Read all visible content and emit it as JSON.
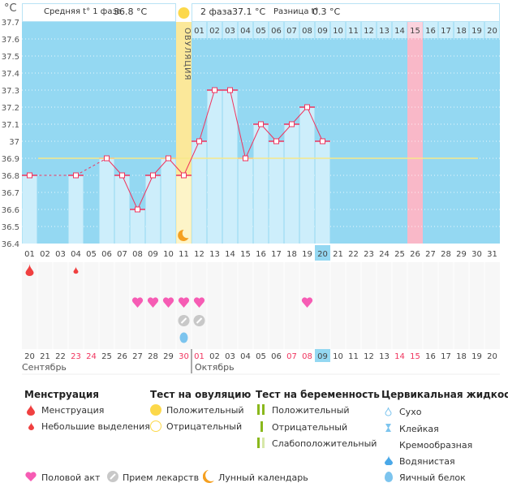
{
  "header": {
    "unit": "°C",
    "phase1_label": "Средняя t° 1 фаза",
    "phase1_value": "36.8 °C",
    "phase2_label": "2 фаза",
    "phase2_value": "37.1 °C",
    "diff_label": "Разница t°",
    "diff_value": "0.3 °C",
    "ovulation_label": "ОВУЛЯЦИЯ"
  },
  "colors": {
    "bg": "#94d8f2",
    "bar": "#cdeefb",
    "line": "#f0345e",
    "coverline": "#f7e78a",
    "ovulation": "#fbe89a",
    "highlight": "#f9b8c8",
    "weekend": "#f0345e"
  },
  "chart_data": {
    "type": "line",
    "ylim": [
      36.4,
      37.7
    ],
    "yticks": [
      "37.7",
      "37.6",
      "37.5",
      "37.4",
      "37.3",
      "37.2",
      "37.1",
      "37",
      "36.9",
      "36.8",
      "36.7",
      "36.6",
      "36.5",
      "36.4"
    ],
    "x": [
      "01",
      "02",
      "03",
      "04",
      "05",
      "06",
      "07",
      "08",
      "09",
      "10",
      "11",
      "12",
      "13",
      "14",
      "15",
      "16",
      "17",
      "18",
      "19",
      "20",
      "21",
      "22",
      "23",
      "24",
      "25",
      "26",
      "27",
      "28",
      "29",
      "30",
      "31"
    ],
    "temperatures": [
      36.8,
      null,
      null,
      36.8,
      null,
      36.9,
      36.8,
      36.6,
      36.8,
      36.9,
      36.8,
      37.0,
      37.3,
      37.3,
      36.9,
      37.1,
      37.0,
      37.1,
      37.2,
      37.0,
      null,
      null,
      null,
      null,
      null,
      null,
      null,
      null,
      null,
      null,
      null
    ],
    "coverline": 36.9,
    "ovulation_day": 11,
    "current_day": 20,
    "highlighted_day": 26,
    "phase2_day_labels": [
      "01",
      "02",
      "03",
      "04",
      "05",
      "06",
      "07",
      "08",
      "09",
      "10",
      "11",
      "12",
      "13",
      "14",
      "15",
      "16",
      "17",
      "18",
      "19",
      "20"
    ],
    "grid": true
  },
  "calendar": {
    "dates": [
      "20",
      "21",
      "22",
      "23",
      "24",
      "25",
      "26",
      "27",
      "28",
      "29",
      "30",
      "01",
      "02",
      "03",
      "04",
      "05",
      "06",
      "07",
      "08",
      "09",
      "10",
      "11",
      "12",
      "13",
      "14",
      "15",
      "16",
      "17",
      "18",
      "19",
      "20"
    ],
    "weekend_indices": [
      3,
      4,
      10,
      11,
      17,
      18,
      24,
      25
    ],
    "today_index": 19,
    "months": [
      "Сентябрь",
      "Октябрь"
    ],
    "menstruation": [
      {
        "day": 1,
        "type": "heavy"
      },
      {
        "day": 4,
        "type": "light"
      }
    ],
    "intercourse_days": [
      8,
      9,
      10,
      11,
      12,
      19
    ],
    "medication_days": [
      11,
      12
    ],
    "cervical_egg_white_days": [
      11
    ],
    "moon_day": 11
  },
  "legend": {
    "menstruation": {
      "title": "Менструация",
      "items": [
        "Менструация",
        "Небольшие выделения"
      ]
    },
    "ovulation_test": {
      "title": "Тест на овуляцию",
      "items": [
        "Положительный",
        "Отрицательный"
      ]
    },
    "pregnancy_test": {
      "title": "Тест на беременность",
      "items": [
        "Положительный",
        "Отрицательный",
        "Слабоположительный"
      ]
    },
    "cervical": {
      "title": "Цервикальная жидкость",
      "items": [
        "Сухо",
        "Клейкая",
        "Кремообразная",
        "Водянистая",
        "Яичный белок"
      ]
    },
    "other": [
      "Половой акт",
      "Прием лекарств",
      "Лунный календарь"
    ]
  }
}
